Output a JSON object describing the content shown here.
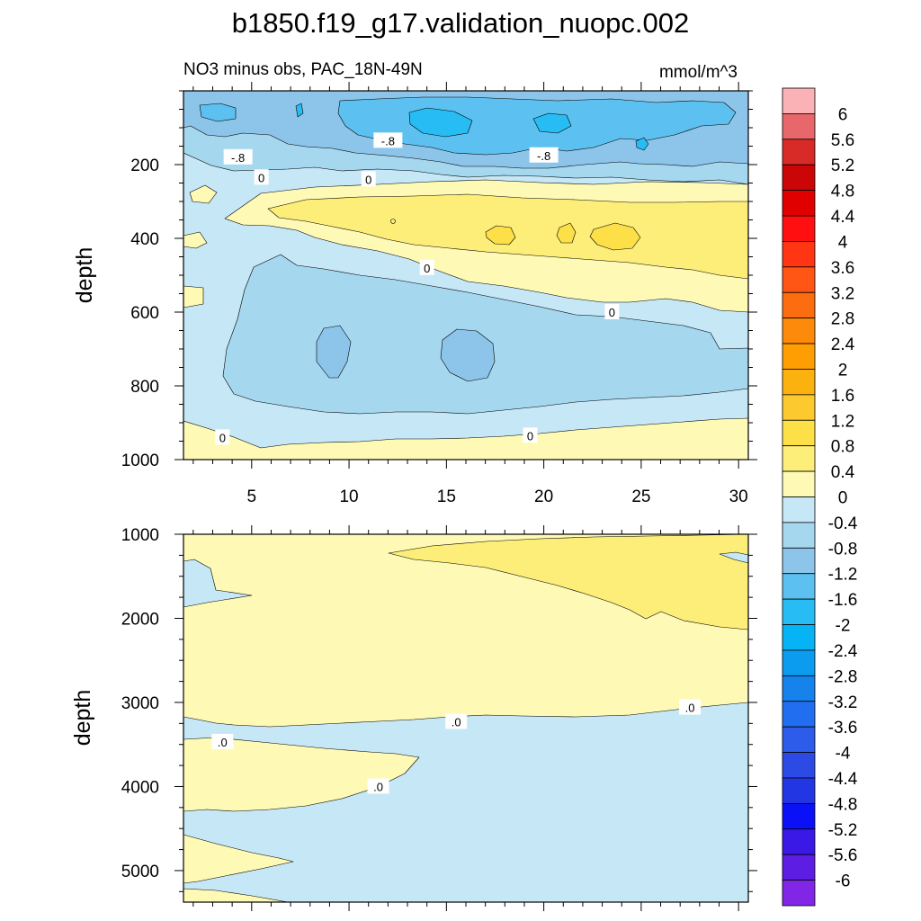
{
  "chart_data": {
    "type": "contour",
    "title": "b1850.f19_g17.validation_nuopc.002",
    "subtitle_left": "NO3 minus obs, PAC_18N-49N",
    "subtitle_right": "mmol/m^3",
    "xlim": [
      1.5,
      30.5
    ],
    "x_ticks": [
      "5",
      "10",
      "15",
      "20",
      "25",
      "30"
    ],
    "x_tick_values": [
      5,
      10,
      15,
      20,
      25,
      30
    ],
    "upper_panel": {
      "ylabel": "depth",
      "ylim": [
        0,
        1000
      ],
      "y_ticks": [
        "200",
        "400",
        "600",
        "800",
        "1000"
      ],
      "y_tick_values": [
        200,
        400,
        600,
        800,
        1000
      ],
      "contour_labels": [
        {
          "text": "-.8",
          "x": 4.3,
          "depth": 180
        },
        {
          "text": "-.8",
          "x": 12.0,
          "depth": 135
        },
        {
          "text": "-.8",
          "x": 20.0,
          "depth": 175
        },
        {
          "text": "0",
          "x": 5.5,
          "depth": 235
        },
        {
          "text": "0",
          "x": 11.0,
          "depth": 240
        },
        {
          "text": "0",
          "x": 14.0,
          "depth": 480
        },
        {
          "text": "0",
          "x": 23.5,
          "depth": 600
        },
        {
          "text": "0",
          "x": 3.5,
          "depth": 940
        },
        {
          "text": "0",
          "x": 19.3,
          "depth": 935
        }
      ]
    },
    "lower_panel": {
      "ylabel": "depth",
      "ylim": [
        1000,
        5375
      ],
      "y_ticks": [
        "1000",
        "2000",
        "3000",
        "4000",
        "5000"
      ],
      "y_tick_values": [
        1000,
        2000,
        3000,
        4000,
        5000
      ],
      "contour_labels": [
        {
          "text": ".0",
          "x": 3.5,
          "depth": 3470
        },
        {
          "text": ".0",
          "x": 11.5,
          "depth": 4000
        },
        {
          "text": ".0",
          "x": 15.5,
          "depth": 3230
        },
        {
          "text": ".0",
          "x": 27.5,
          "depth": 3060
        }
      ]
    },
    "colorbar": {
      "levels": [
        "6",
        "5.6",
        "5.2",
        "4.8",
        "4.4",
        "4",
        "3.6",
        "3.2",
        "2.8",
        "2.4",
        "2",
        "1.6",
        "1.2",
        "0.8",
        "0.4",
        "0",
        "-0.4",
        "-0.8",
        "-1.2",
        "-1.6",
        "-2",
        "-2.4",
        "-2.8",
        "-3.2",
        "-3.6",
        "-4",
        "-4.4",
        "-4.8",
        "-5.2",
        "-5.6",
        "-6"
      ],
      "colors": [
        "#fbb2b6",
        "#e8676b",
        "#d82a27",
        "#cb0606",
        "#e00000",
        "#ff0f0f",
        "#ff3513",
        "#ff5515",
        "#fb6d0f",
        "#fe8a0b",
        "#ff9e02",
        "#fbb20f",
        "#fcca2e",
        "#fde048",
        "#fdee79",
        "#fefab5",
        "#c6e7f5",
        "#a5d7ef",
        "#8dc5ea",
        "#5cc1f1",
        "#27bdf4",
        "#06b3f5",
        "#0b9cf0",
        "#1682ec",
        "#216ef0",
        "#2c5ce9",
        "#2b4be4",
        "#2336e3",
        "#0b11f6",
        "#3a18e5",
        "#5d1de3",
        "#8126e6"
      ]
    }
  }
}
